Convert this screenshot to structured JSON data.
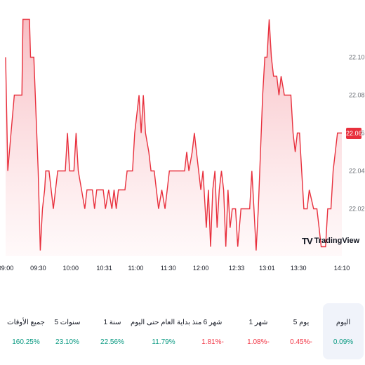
{
  "chart": {
    "colors": {
      "line": "#e8303d",
      "fill_top": "#f7b7bd",
      "fill_bottom": "#fff5f6",
      "positive": "#089981",
      "negative": "#f23645"
    },
    "last_price_label": "22.06",
    "logo_text": "TradingView",
    "logo_mark": "TV"
  },
  "chart_data": {
    "type": "area",
    "y_ticks": [
      "22.10",
      "22.08",
      "22.06",
      "22.04",
      "22.02"
    ],
    "y_tick_values": [
      22.1,
      22.08,
      22.06,
      22.04,
      22.02
    ],
    "ylim": [
      21.995,
      22.125
    ],
    "x_ticks": [
      "09:00",
      "09:30",
      "10:00",
      "10:31",
      "11:00",
      "11:30",
      "12:00",
      "12:33",
      "13:01",
      "13:30",
      "14:10"
    ],
    "x_tick_minutes": [
      0,
      30,
      60,
      91,
      120,
      150,
      180,
      213,
      241,
      270,
      310
    ],
    "x_range_minutes": [
      0,
      310
    ],
    "last_value": 22.06,
    "points": [
      [
        0,
        22.1
      ],
      [
        2,
        22.04
      ],
      [
        5,
        22.06
      ],
      [
        8,
        22.08
      ],
      [
        15,
        22.08
      ],
      [
        16,
        22.12
      ],
      [
        22,
        22.12
      ],
      [
        23,
        22.1
      ],
      [
        26,
        22.1
      ],
      [
        30,
        22.04
      ],
      [
        32,
        21.998
      ],
      [
        34,
        22.02
      ],
      [
        36,
        22.03
      ],
      [
        37,
        22.04
      ],
      [
        40,
        22.04
      ],
      [
        42,
        22.03
      ],
      [
        44,
        22.02
      ],
      [
        46,
        22.03
      ],
      [
        48,
        22.04
      ],
      [
        55,
        22.04
      ],
      [
        57,
        22.06
      ],
      [
        59,
        22.04
      ],
      [
        63,
        22.04
      ],
      [
        65,
        22.06
      ],
      [
        67,
        22.04
      ],
      [
        70,
        22.03
      ],
      [
        73,
        22.02
      ],
      [
        75,
        22.03
      ],
      [
        80,
        22.03
      ],
      [
        82,
        22.02
      ],
      [
        84,
        22.03
      ],
      [
        90,
        22.03
      ],
      [
        92,
        22.02
      ],
      [
        95,
        22.03
      ],
      [
        98,
        22.02
      ],
      [
        100,
        22.03
      ],
      [
        102,
        22.02
      ],
      [
        104,
        22.03
      ],
      [
        110,
        22.03
      ],
      [
        112,
        22.04
      ],
      [
        117,
        22.04
      ],
      [
        119,
        22.06
      ],
      [
        121,
        22.07
      ],
      [
        123,
        22.08
      ],
      [
        125,
        22.06
      ],
      [
        127,
        22.08
      ],
      [
        129,
        22.06
      ],
      [
        132,
        22.05
      ],
      [
        134,
        22.04
      ],
      [
        137,
        22.04
      ],
      [
        139,
        22.03
      ],
      [
        141,
        22.02
      ],
      [
        144,
        22.03
      ],
      [
        147,
        22.02
      ],
      [
        149,
        22.03
      ],
      [
        151,
        22.04
      ],
      [
        165,
        22.04
      ],
      [
        167,
        22.05
      ],
      [
        169,
        22.04
      ],
      [
        172,
        22.05
      ],
      [
        174,
        22.06
      ],
      [
        176,
        22.05
      ],
      [
        178,
        22.04
      ],
      [
        180,
        22.03
      ],
      [
        182,
        22.04
      ],
      [
        185,
        22.01
      ],
      [
        187,
        22.03
      ],
      [
        189,
        22.0
      ],
      [
        191,
        22.03
      ],
      [
        193,
        22.04
      ],
      [
        195,
        22.01
      ],
      [
        197,
        22.03
      ],
      [
        199,
        22.04
      ],
      [
        201,
        22.03
      ],
      [
        203,
        22.0
      ],
      [
        205,
        22.03
      ],
      [
        207,
        22.01
      ],
      [
        209,
        22.02
      ],
      [
        212,
        22.02
      ],
      [
        214,
        22.0
      ],
      [
        217,
        22.02
      ],
      [
        225,
        22.02
      ],
      [
        227,
        22.04
      ],
      [
        229,
        22.02
      ],
      [
        231,
        21.998
      ],
      [
        233,
        22.02
      ],
      [
        235,
        22.05
      ],
      [
        237,
        22.08
      ],
      [
        239,
        22.1
      ],
      [
        241,
        22.1
      ],
      [
        243,
        22.12
      ],
      [
        245,
        22.1
      ],
      [
        247,
        22.09
      ],
      [
        250,
        22.09
      ],
      [
        252,
        22.08
      ],
      [
        254,
        22.09
      ],
      [
        257,
        22.08
      ],
      [
        263,
        22.08
      ],
      [
        265,
        22.06
      ],
      [
        267,
        22.05
      ],
      [
        269,
        22.06
      ],
      [
        271,
        22.06
      ],
      [
        273,
        22.04
      ],
      [
        275,
        22.02
      ],
      [
        278,
        22.02
      ],
      [
        280,
        22.03
      ],
      [
        284,
        22.02
      ],
      [
        287,
        22.02
      ],
      [
        289,
        22.01
      ],
      [
        291,
        22.0
      ],
      [
        295,
        22.0
      ],
      [
        297,
        22.02
      ],
      [
        300,
        22.02
      ],
      [
        302,
        22.04
      ],
      [
        304,
        22.05
      ],
      [
        306,
        22.06
      ],
      [
        310,
        22.06
      ]
    ]
  },
  "periods": [
    {
      "label": "اليوم",
      "value": "0.09%",
      "sign": "positive",
      "active": true
    },
    {
      "label": "5 يوم",
      "value": "0.45%-",
      "sign": "negative",
      "active": false
    },
    {
      "label": "1 شهر",
      "value": "1.08%-",
      "sign": "negative",
      "active": false
    },
    {
      "label": "6 شهر",
      "value": "1.81%-",
      "sign": "negative",
      "active": false
    },
    {
      "label": "منذ بداية العام حتى اليوم",
      "value": "11.79%",
      "sign": "positive",
      "active": false
    },
    {
      "label": "1 سنة",
      "value": "22.56%",
      "sign": "positive",
      "active": false
    },
    {
      "label": "5 سنوات",
      "value": "23.10%",
      "sign": "positive",
      "active": false
    },
    {
      "label": "جميع الأوقات",
      "value": "160.25%",
      "sign": "positive",
      "active": false
    }
  ]
}
